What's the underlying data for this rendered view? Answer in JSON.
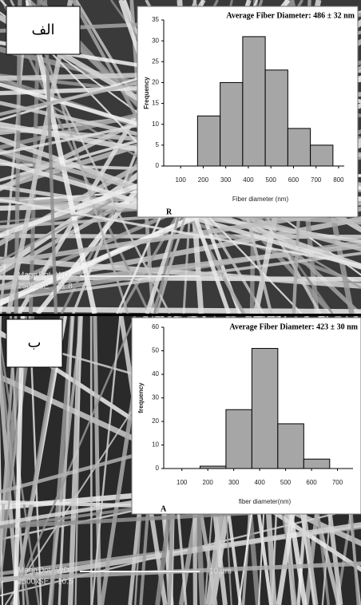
{
  "chart_data": [
    {
      "type": "histogram",
      "panel_label": "الف",
      "title": "Average Fiber Diameter: 486 ± 32 nm",
      "x_label": "Fiber diameter (nm)",
      "y_label": "Frequency",
      "corner_label": "R",
      "bins": [
        175,
        275,
        375,
        475,
        575,
        675,
        775
      ],
      "values": [
        12,
        20,
        31,
        23,
        9,
        5
      ],
      "color": "#a6a6a6",
      "xlim": [
        25,
        825
      ],
      "xticks": [
        100,
        200,
        300,
        400,
        500,
        600,
        700,
        800
      ],
      "ylim": [
        0,
        35
      ],
      "yticks": [
        0,
        5,
        10,
        15,
        20,
        25,
        30,
        35
      ],
      "annotations": [
        "Magn",
        "Dot",
        "WD",
        "2500x",
        "SE",
        "11.8",
        "10 µm"
      ]
    },
    {
      "type": "histogram",
      "panel_label": "ب",
      "title": "Average Fiber Diameter: 423 ± 30 nm",
      "x_label": "fiber diameter(nm)",
      "y_label": "frequency",
      "corner_label": "A",
      "bins": [
        170,
        270,
        370,
        470,
        570,
        670
      ],
      "values": [
        1,
        25,
        51,
        19,
        4
      ],
      "color": "#a6a6a6",
      "xlim": [
        30,
        760
      ],
      "xticks": [
        100,
        200,
        300,
        400,
        500,
        600,
        700
      ],
      "ylim": [
        0,
        60
      ],
      "yticks": [
        0,
        10,
        20,
        30,
        40,
        50,
        60
      ],
      "annotations": [
        "Magn",
        "Dot",
        "WD",
        "2500x",
        "SE",
        "10.5",
        "10 µm"
      ]
    }
  ]
}
